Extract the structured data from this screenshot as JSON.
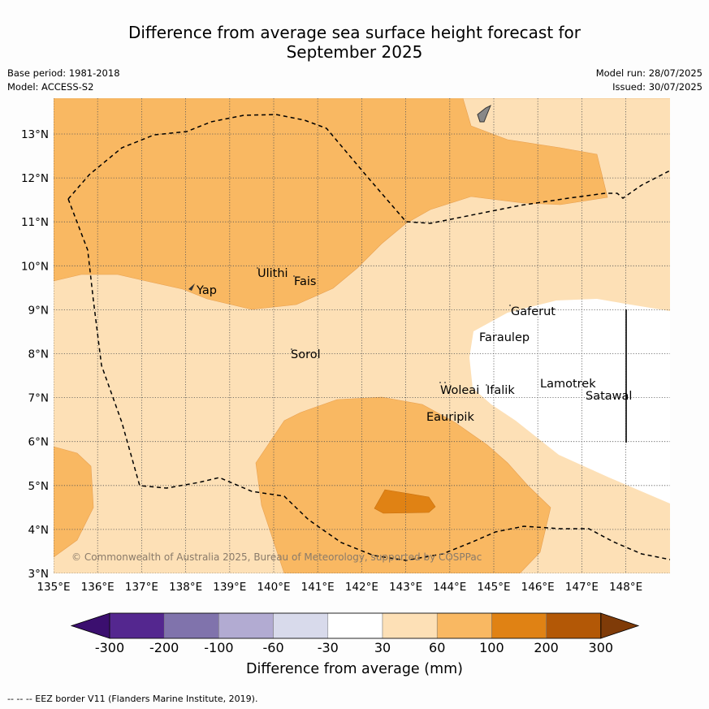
{
  "title_line1": "Difference from average sea surface height forecast for",
  "title_line2": "September 2025",
  "meta_left": {
    "base_period": "Base period: 1981-2018",
    "model": "Model: ACCESS-S2"
  },
  "meta_right": {
    "model_run": "Model run: 28/07/2025",
    "issued": "Issued: 30/07/2025"
  },
  "x_ticks": [
    "135°E",
    "136°E",
    "137°E",
    "138°E",
    "139°E",
    "140°E",
    "141°E",
    "142°E",
    "143°E",
    "144°E",
    "145°E",
    "146°E",
    "147°E",
    "148°E"
  ],
  "y_ticks": [
    "3°N",
    "4°N",
    "5°N",
    "6°N",
    "7°N",
    "8°N",
    "9°N",
    "10°N",
    "11°N",
    "12°N",
    "13°N"
  ],
  "places": {
    "yap": "Yap",
    "ulithi": "Ulithi",
    "fais": "Fais",
    "sorol": "Sorol",
    "gaferut": "Gaferut",
    "faraulep": "Faraulep",
    "woleai": "Woleai",
    "ifalik": "Ifalik",
    "lamotrek": "Lamotrek",
    "satawal": "Satawal",
    "eauripik": "Eauripik"
  },
  "copyright": "© Commonwealth of Australia 2025, Bureau of Meteorology, supported by COSPPac",
  "colorbar": {
    "labels": [
      "-300",
      "-200",
      "-100",
      "-60",
      "-30",
      "30",
      "60",
      "100",
      "200",
      "300"
    ],
    "colors": [
      "#3b0f6f",
      "#54278f",
      "#8073ac",
      "#b2abd2",
      "#d8daeb",
      "#ffffff",
      "#fde0b6",
      "#f9b862",
      "#e08214",
      "#b35806",
      "#7f3b08"
    ],
    "title": "Difference from average (mm)"
  },
  "footnote": "--  --  -- EEZ border V11 (Flanders Marine Institute, 2019)."
}
